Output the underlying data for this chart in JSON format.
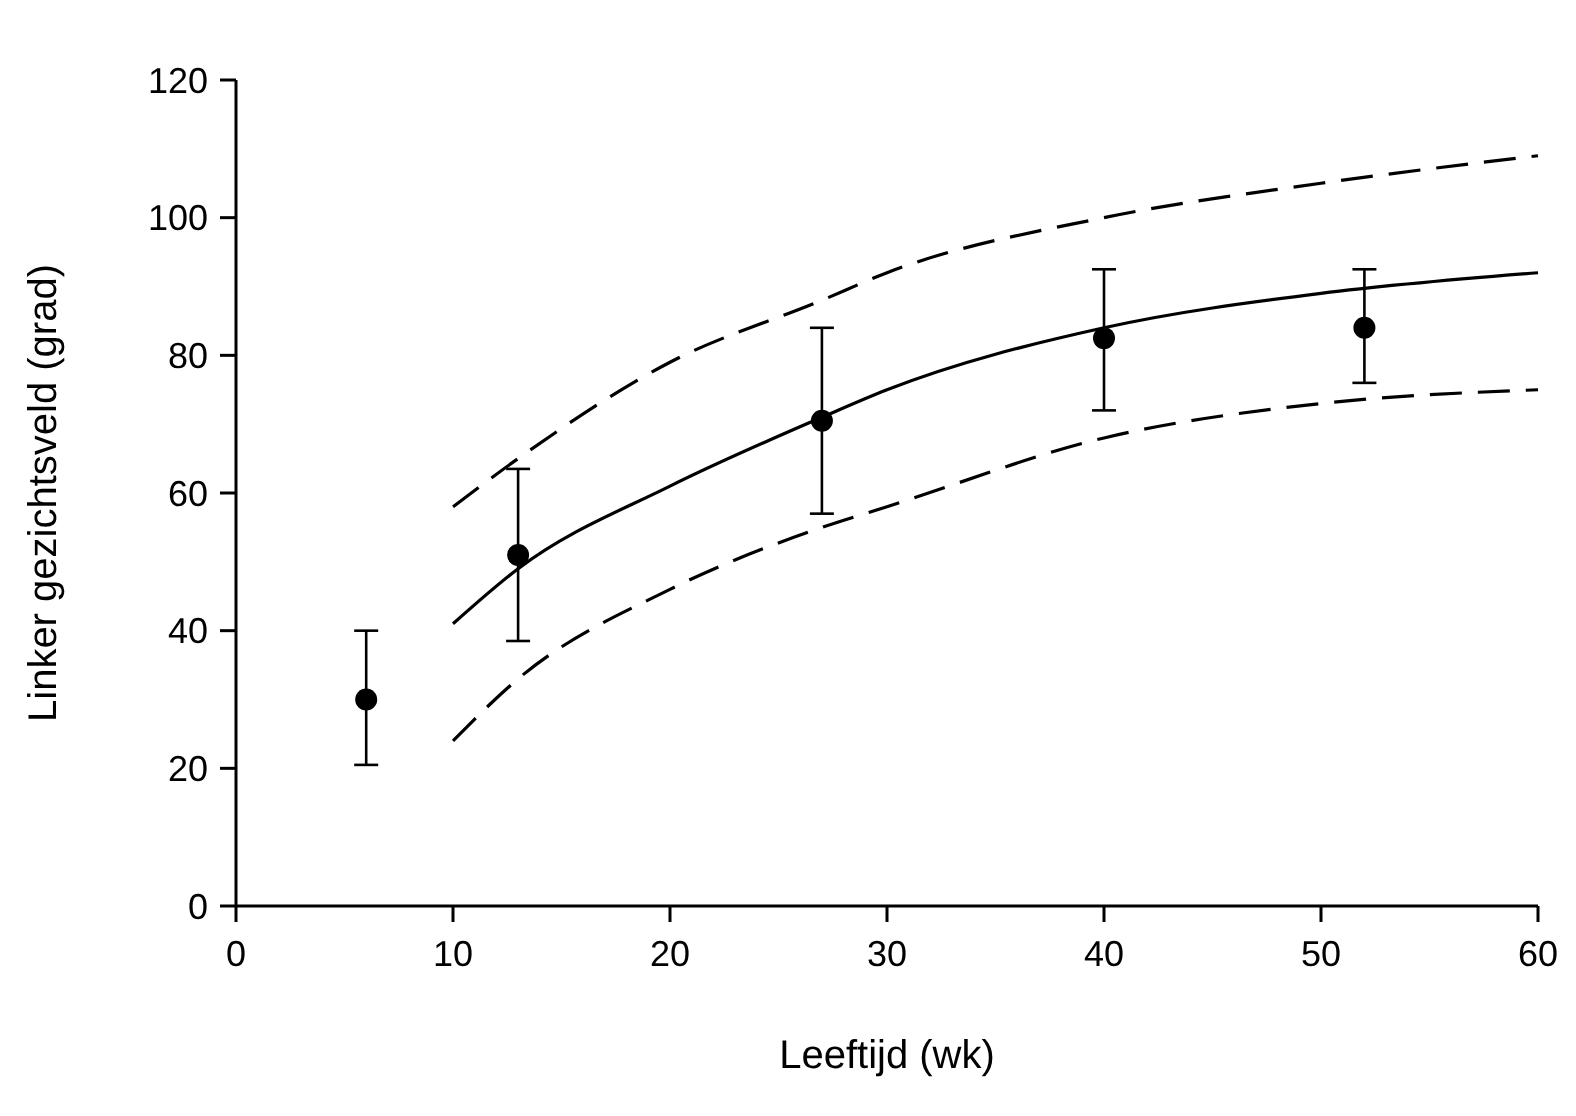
{
  "chart_data": {
    "type": "line",
    "xlabel": "Leeftijd (wk)",
    "ylabel": "Linker gezichtsveld (grad)",
    "xlim": [
      0,
      60
    ],
    "ylim": [
      0,
      120
    ],
    "xticks": [
      0,
      10,
      20,
      30,
      40,
      50,
      60
    ],
    "yticks": [
      0,
      20,
      40,
      60,
      80,
      100,
      120
    ],
    "series": [
      {
        "type": "scatter",
        "color": "#000000",
        "marker": "circle",
        "x": [
          6,
          13,
          27,
          40,
          52
        ],
        "values": [
          30,
          51,
          70.5,
          82.5,
          84
        ],
        "errors": [
          [
            20.5,
            40
          ],
          [
            38.5,
            63.5
          ],
          [
            57,
            84
          ],
          [
            72,
            92.5
          ],
          [
            76,
            92.5
          ]
        ]
      },
      {
        "color": "#000000",
        "line_style": "solid",
        "x": [
          10,
          13,
          20,
          27,
          30,
          40,
          50,
          60
        ],
        "values": [
          41,
          49,
          61,
          71,
          75,
          84,
          89,
          92
        ]
      },
      {
        "color": "#000000",
        "line_style": "dashed",
        "x": [
          10,
          13,
          20,
          27,
          30,
          40,
          50,
          60
        ],
        "values": [
          58,
          65,
          79,
          88,
          92,
          100,
          105,
          109
        ]
      },
      {
        "color": "#000000",
        "line_style": "dashed",
        "x": [
          10,
          13,
          20,
          27,
          30,
          40,
          50,
          60
        ],
        "values": [
          24,
          33,
          46,
          55,
          58,
          68,
          73,
          75
        ]
      }
    ]
  }
}
